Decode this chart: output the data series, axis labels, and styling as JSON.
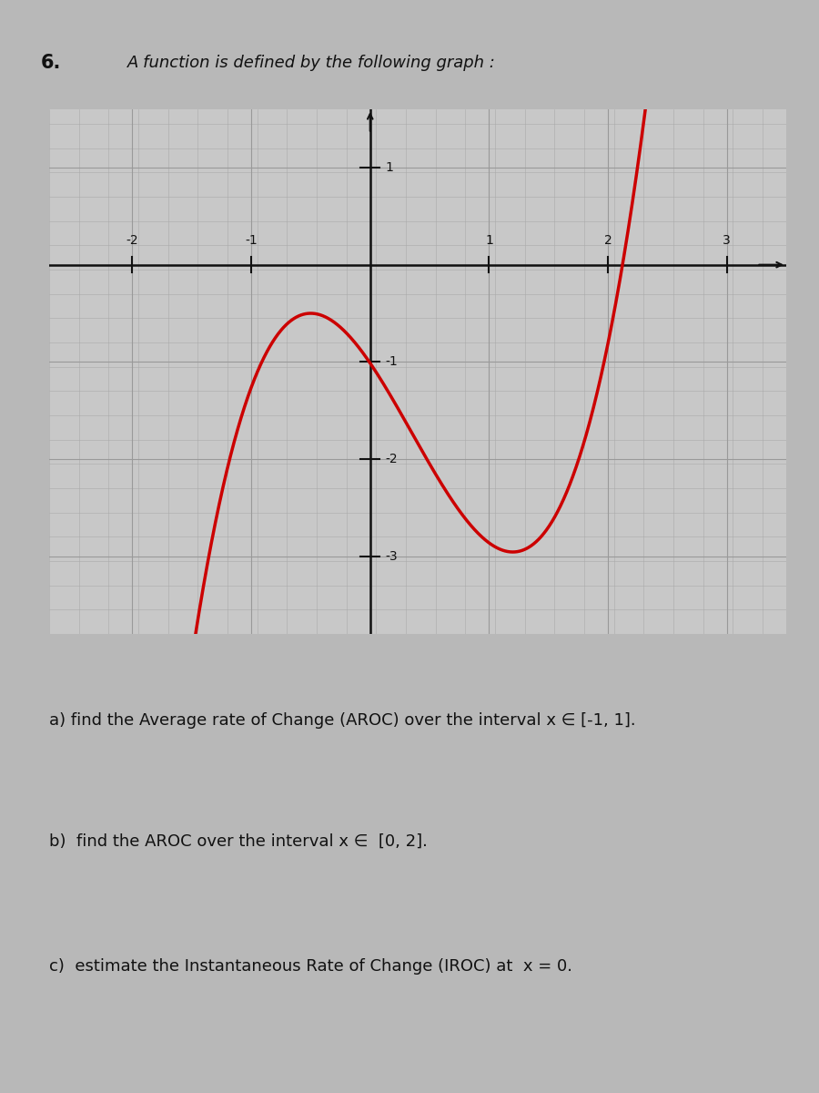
{
  "title_number": "6.",
  "title_text": "A function is defined by the following graph :",
  "bg_color": "#b8b8b8",
  "graph_bg_color": "#c8c8c8",
  "fine_grid_color": "#aaaaaa",
  "major_grid_color": "#999999",
  "curve_color": "#cc0000",
  "curve_linewidth": 2.5,
  "axis_color": "#111111",
  "tick_label_color": "#111111",
  "xlim": [
    -2.7,
    3.5
  ],
  "ylim": [
    -3.8,
    1.6
  ],
  "xtick_labels": [
    "-2",
    "-1",
    "1",
    "2",
    "3"
  ],
  "xtick_positions": [
    -2,
    -1,
    1,
    2,
    3
  ],
  "ytick_labels": [
    "-1",
    "-2",
    "-3",
    "1"
  ],
  "ytick_positions": [
    -1,
    -2,
    -3,
    1
  ],
  "text_a": "a) find the Average rate of Change (AROC) over the interval x ∈ [-1, 1].",
  "text_b": "b)  find the AROC over the interval x ∈  [0, 2].",
  "text_c": "c)  estimate the Instantaneous Rate of Change (IROC) at  x = 0.",
  "font_size_title_num": 15,
  "font_size_title": 13,
  "font_size_text": 13,
  "font_size_ticks": 10,
  "cubic_a": 1.0,
  "cubic_b": -1.05,
  "cubic_c": -1.8,
  "cubic_d": -1.0125,
  "curve_xstart": -2.15,
  "curve_xend": 2.58
}
